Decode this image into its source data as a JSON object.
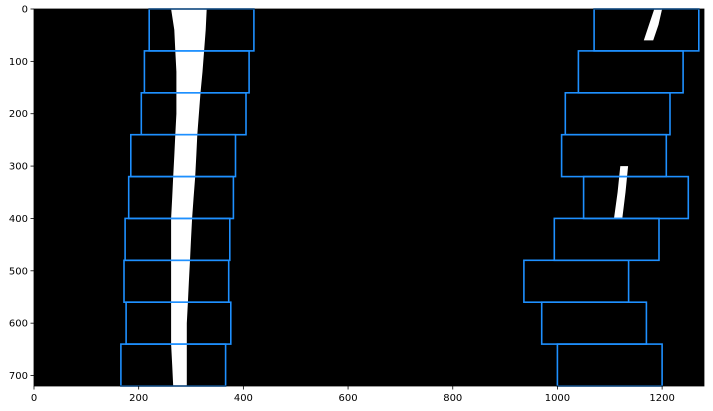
{
  "chart_data": {
    "type": "image",
    "title": "",
    "xlabel": "",
    "ylabel": "",
    "xlim": [
      0,
      1280
    ],
    "ylim": [
      720,
      0
    ],
    "xticks": [
      0,
      200,
      400,
      600,
      800,
      1000,
      1200
    ],
    "yticks": [
      0,
      100,
      200,
      300,
      400,
      500,
      600,
      700
    ],
    "background_color": "#000000",
    "lane_pixel_color": "#ffffff",
    "window_color": "#1e90ff",
    "window_height": 80,
    "left_lane": {
      "pixels": [
        {
          "y": 0,
          "x_left": 262,
          "x_right": 330
        },
        {
          "y": 40,
          "x_left": 268,
          "x_right": 328
        },
        {
          "y": 80,
          "x_left": 270,
          "x_right": 325
        },
        {
          "y": 120,
          "x_left": 272,
          "x_right": 322
        },
        {
          "y": 160,
          "x_left": 272,
          "x_right": 318
        },
        {
          "y": 200,
          "x_left": 272,
          "x_right": 315
        },
        {
          "y": 240,
          "x_left": 270,
          "x_right": 312
        },
        {
          "y": 280,
          "x_left": 268,
          "x_right": 310
        },
        {
          "y": 320,
          "x_left": 266,
          "x_right": 308
        },
        {
          "y": 360,
          "x_left": 264,
          "x_right": 305
        },
        {
          "y": 400,
          "x_left": 262,
          "x_right": 302
        },
        {
          "y": 440,
          "x_left": 262,
          "x_right": 300
        },
        {
          "y": 480,
          "x_left": 262,
          "x_right": 298
        },
        {
          "y": 520,
          "x_left": 262,
          "x_right": 296
        },
        {
          "y": 560,
          "x_left": 262,
          "x_right": 294
        },
        {
          "y": 600,
          "x_left": 262,
          "x_right": 292
        },
        {
          "y": 640,
          "x_left": 262,
          "x_right": 292
        },
        {
          "y": 680,
          "x_left": 264,
          "x_right": 292
        },
        {
          "y": 720,
          "x_left": 266,
          "x_right": 292
        }
      ],
      "windows": [
        {
          "y_top": 640,
          "x_center": 266
        },
        {
          "y_top": 560,
          "x_center": 276
        },
        {
          "y_top": 480,
          "x_center": 272
        },
        {
          "y_top": 400,
          "x_center": 274
        },
        {
          "y_top": 320,
          "x_center": 281
        },
        {
          "y_top": 240,
          "x_center": 285
        },
        {
          "y_top": 160,
          "x_center": 305
        },
        {
          "y_top": 80,
          "x_center": 311
        },
        {
          "y_top": 0,
          "x_center": 320
        }
      ]
    },
    "right_lane": {
      "pixels": [
        {
          "y": 0,
          "x_left": 1185,
          "x_right": 1200
        },
        {
          "y": 30,
          "x_left": 1175,
          "x_right": 1193
        },
        {
          "y": 60,
          "x_left": 1165,
          "x_right": 1183
        },
        {
          "y": 300,
          "x_left": 1120,
          "x_right": 1135
        },
        {
          "y": 350,
          "x_left": 1115,
          "x_right": 1130
        },
        {
          "y": 400,
          "x_left": 1108,
          "x_right": 1124
        }
      ],
      "windows": [
        {
          "y_top": 640,
          "x_center": 1100
        },
        {
          "y_top": 560,
          "x_center": 1070
        },
        {
          "y_top": 480,
          "x_center": 1036
        },
        {
          "y_top": 400,
          "x_center": 1094
        },
        {
          "y_top": 320,
          "x_center": 1150
        },
        {
          "y_top": 240,
          "x_center": 1108
        },
        {
          "y_top": 160,
          "x_center": 1115
        },
        {
          "y_top": 80,
          "x_center": 1140
        },
        {
          "y_top": 0,
          "x_center": 1170
        }
      ]
    }
  }
}
